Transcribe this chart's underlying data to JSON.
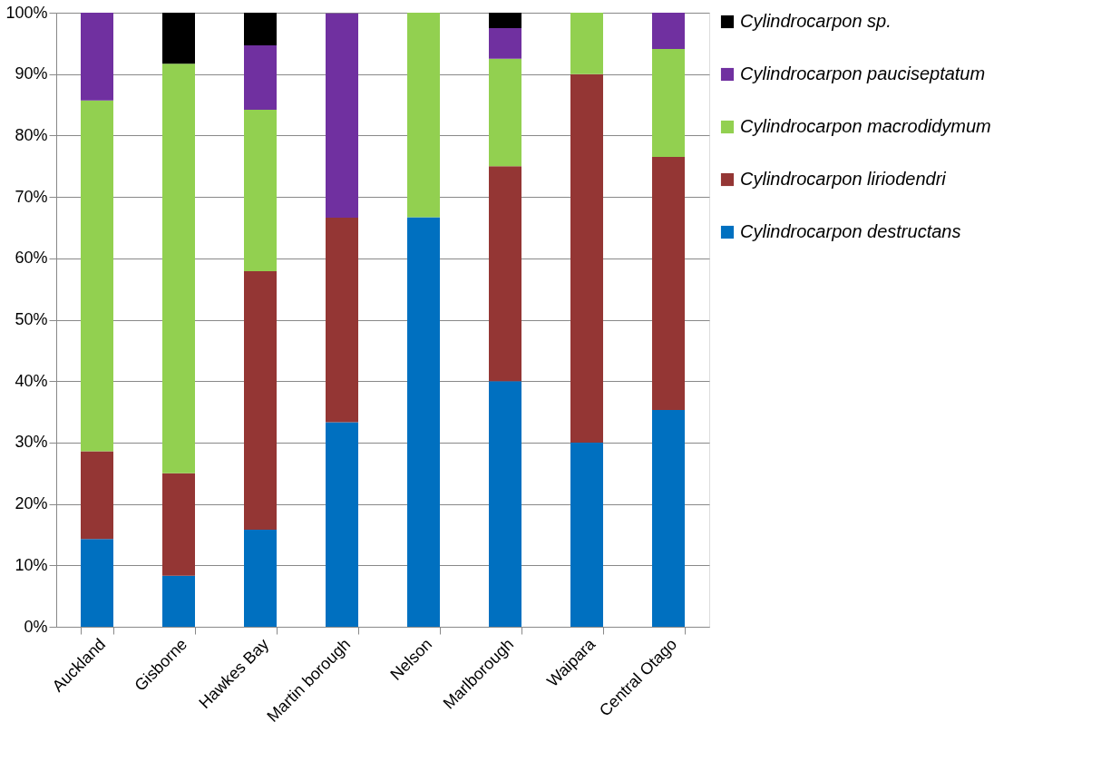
{
  "chart_data": {
    "type": "bar",
    "stacked": true,
    "categories": [
      "Auckland",
      "Gisborne",
      "Hawkes Bay",
      "Martin borough",
      "Nelson",
      "Marlborough",
      "Waipara",
      "Central Otago"
    ],
    "series": [
      {
        "name": "Cylindrocarpon destructans",
        "color": "#0070c0",
        "values": [
          14.3,
          8.3,
          15.8,
          33.3,
          66.7,
          40,
          30,
          35.3
        ]
      },
      {
        "name": "Cylindrocarpon liriodendri",
        "color": "#943634",
        "values": [
          14.3,
          16.7,
          42.1,
          33.3,
          0,
          35,
          60,
          41.2
        ]
      },
      {
        "name": "Cylindrocarpon macrodidymum",
        "color": "#92d050",
        "values": [
          57.1,
          66.7,
          26.3,
          0,
          33.3,
          17.5,
          10,
          17.6
        ]
      },
      {
        "name": "Cylindrocarpon pauciseptatum",
        "color": "#7030a0",
        "values": [
          14.3,
          0,
          10.5,
          33.3,
          0,
          5,
          0,
          5.9
        ]
      },
      {
        "name": "Cylindrocarpon sp.",
        "color": "#000000",
        "values": [
          0,
          8.3,
          5.3,
          0,
          0,
          2.5,
          0,
          0
        ]
      }
    ],
    "ylim": [
      0,
      100
    ],
    "yticks": [
      {
        "value": 0,
        "label": "0%"
      },
      {
        "value": 10,
        "label": "10%"
      },
      {
        "value": 20,
        "label": "20%"
      },
      {
        "value": 30,
        "label": "30%"
      },
      {
        "value": 40,
        "label": "40%"
      },
      {
        "value": 50,
        "label": "50%"
      },
      {
        "value": 60,
        "label": "60%"
      },
      {
        "value": 70,
        "label": "70%"
      },
      {
        "value": 80,
        "label": "80%"
      },
      {
        "value": 90,
        "label": "90%"
      },
      {
        "value": 100,
        "label": "100%"
      }
    ],
    "grid": "y",
    "legend": "right"
  }
}
